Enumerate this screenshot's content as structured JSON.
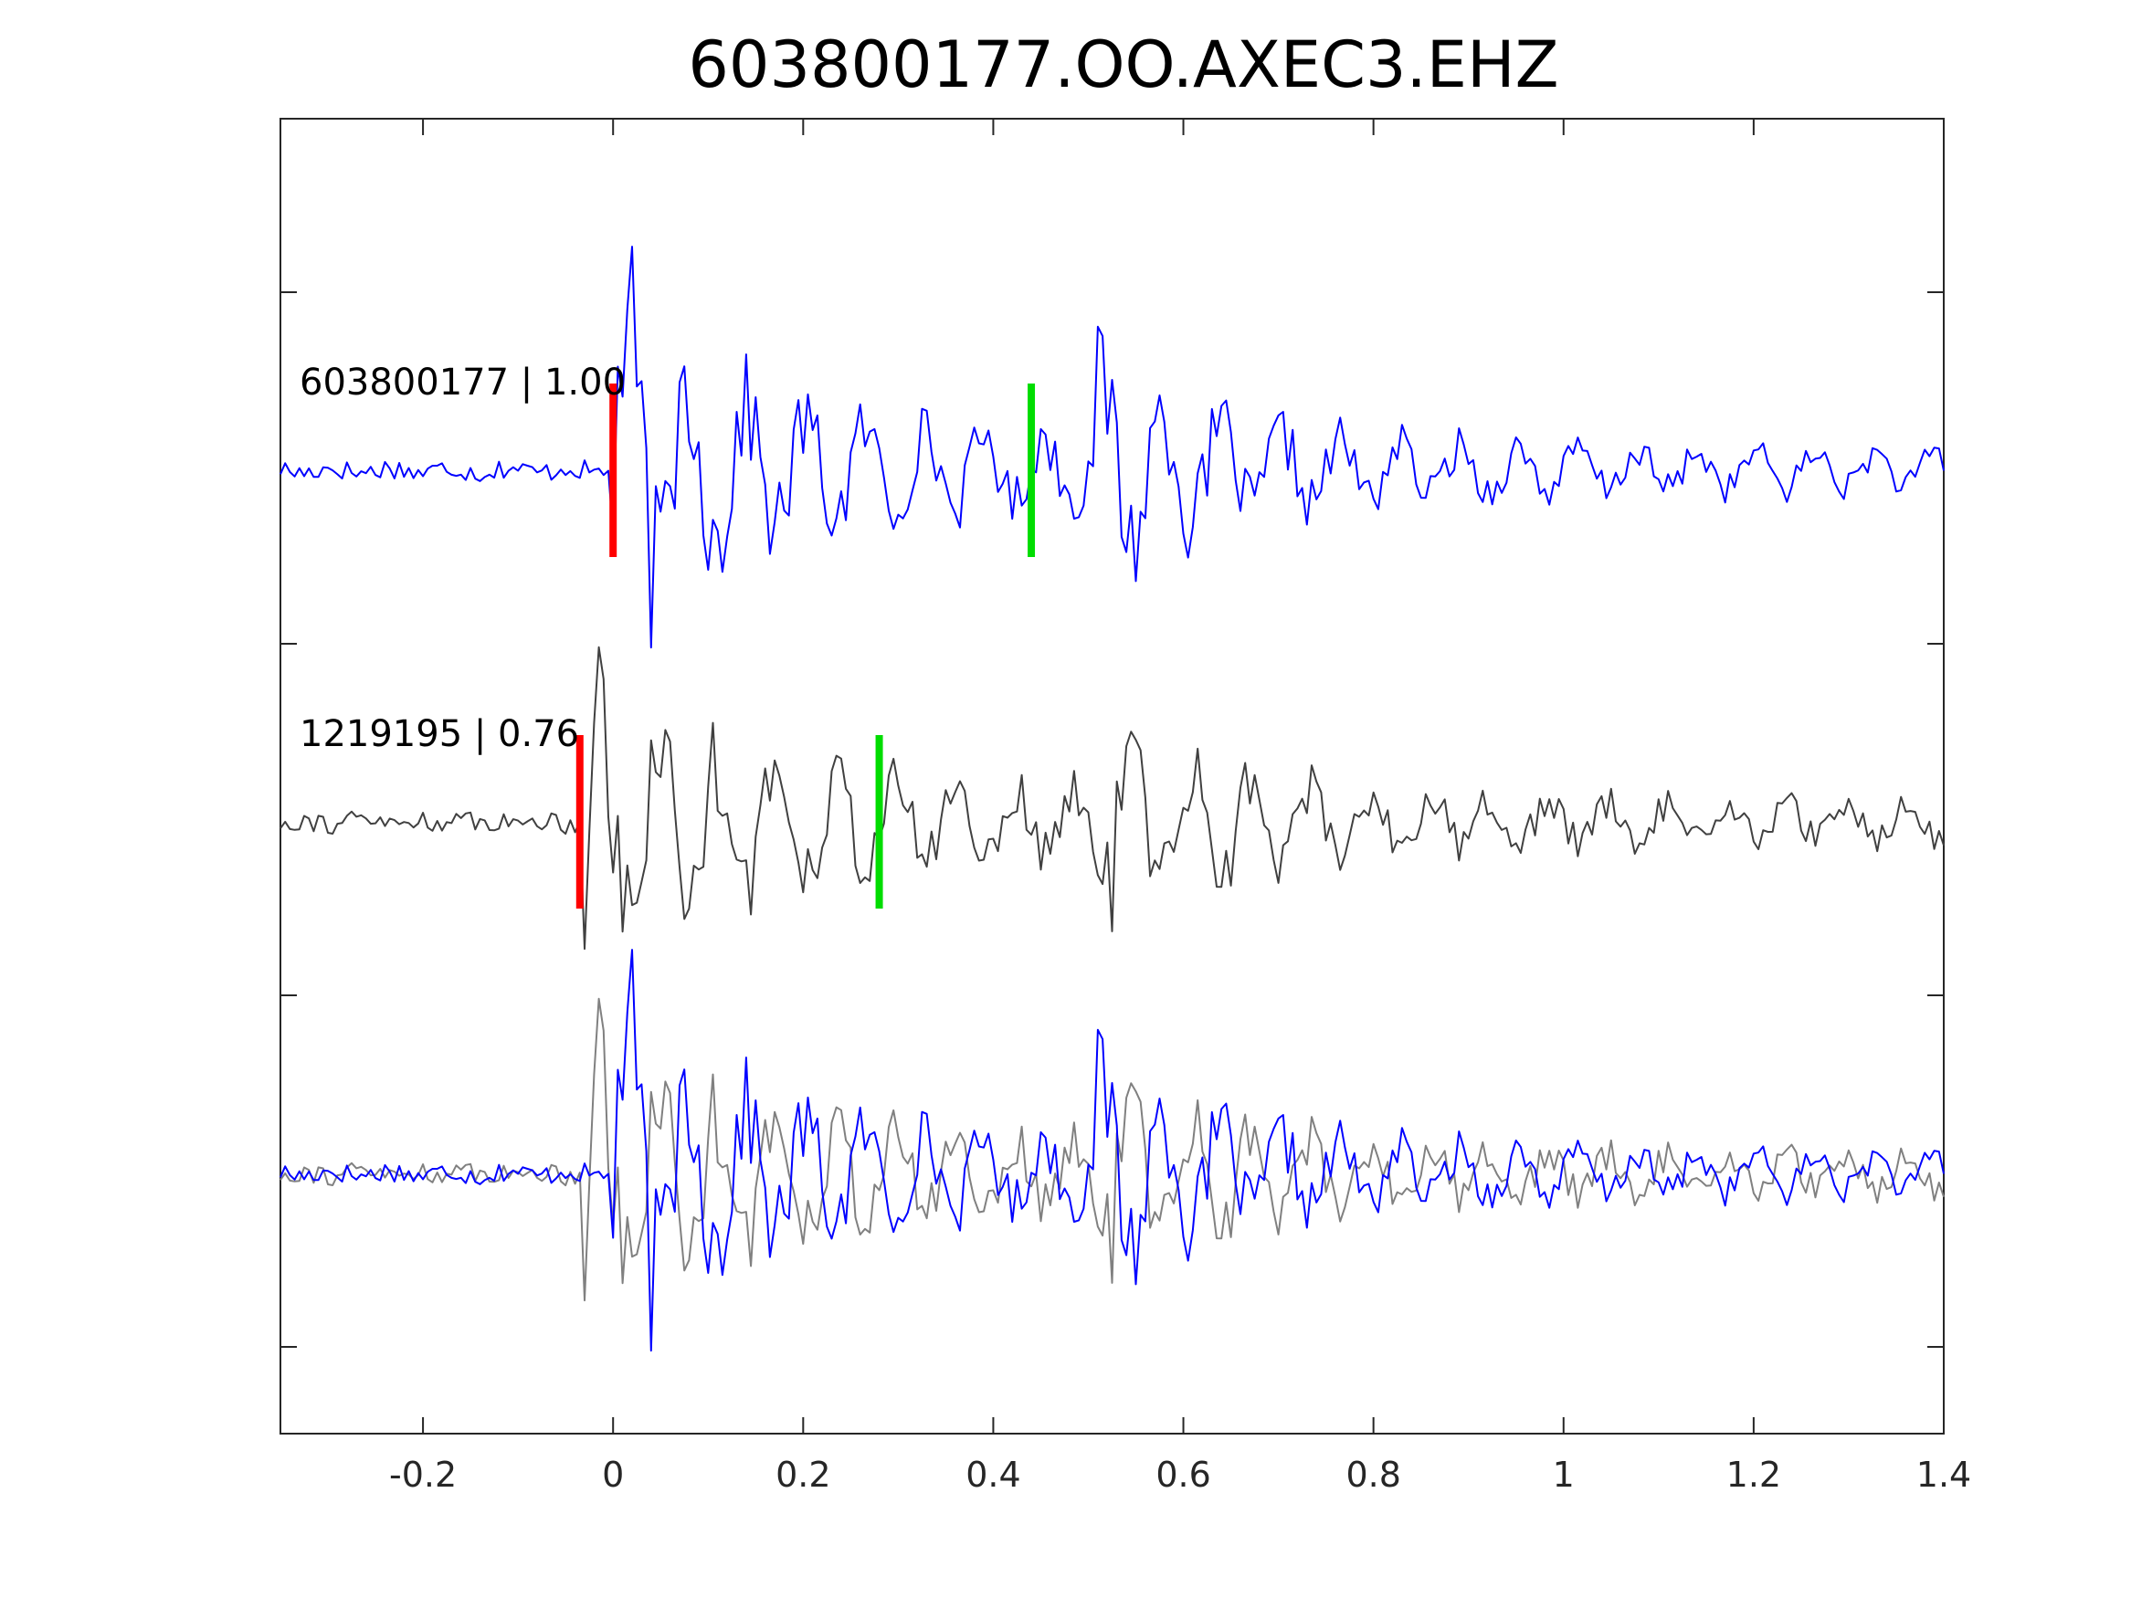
{
  "figure": {
    "title": "603800177.OO.AXEC3.EHZ"
  },
  "chart_data": {
    "type": "line",
    "title": "603800177.OO.AXEC3.EHZ",
    "xlabel": "",
    "ylabel": "",
    "xlim": [
      -0.35,
      1.4
    ],
    "x_ticks": [
      -0.2,
      0,
      0.2,
      0.4,
      0.6,
      0.8,
      1,
      1.2,
      1.4
    ],
    "x_tick_labels": [
      "-0.2",
      "0",
      "0.2",
      "0.4",
      "0.6",
      "0.8",
      "1",
      "1.2",
      "1.4"
    ],
    "y_ticks_visible_labels": false,
    "grid": false,
    "sample_interval": 0.005,
    "traces": [
      {
        "name": "603800177 | 1.00",
        "label": "603800177 | 1.00",
        "color": "#0000ff",
        "panel": "top",
        "p_pick": 0.0,
        "s_pick": 0.44
      },
      {
        "name": "1219195 | 0.76",
        "label": "1219195 | 0.76",
        "color": "#404040",
        "panel": "middle",
        "p_pick": -0.035,
        "s_pick": 0.28
      }
    ],
    "overlay": {
      "panel": "bottom",
      "series": [
        "603800177",
        "1219195"
      ],
      "colors": [
        "#0000ff",
        "#808080"
      ]
    },
    "pick_colors": {
      "p": "#ff0000",
      "s": "#00dd00"
    }
  }
}
